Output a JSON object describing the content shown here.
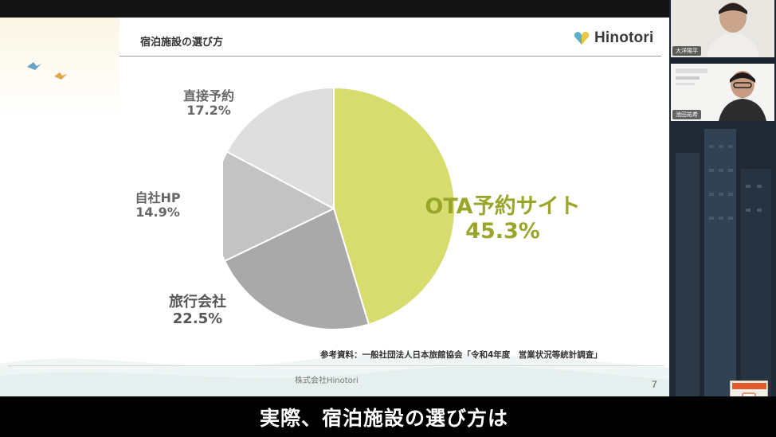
{
  "slide": {
    "title": "宿泊施設の選び方",
    "logo_text": "Hinotori",
    "source": "参考資料：一般社団法人日本旅館協会「令和4年度　営業状況等統計調査」",
    "company": "株式会社Hinotori",
    "page_number": "7"
  },
  "chart_data": {
    "type": "pie",
    "title": "",
    "slices": [
      {
        "label": "OTA予約サイト",
        "value": 45.3,
        "pct_label": "45.3%",
        "color": "#d6dc6e"
      },
      {
        "label": "旅行会社",
        "value": 22.5,
        "pct_label": "22.5%",
        "color": "#a9a9a9"
      },
      {
        "label": "自社HP",
        "value": 14.9,
        "pct_label": "14.9%",
        "color": "#c3c3c3"
      },
      {
        "label": "直接予約",
        "value": 17.2,
        "pct_label": "17.2%",
        "color": "#dedede"
      }
    ],
    "start_angle_deg": 0,
    "direction": "clockwise",
    "legend": "none"
  },
  "caption": "実際、宿泊施設の選び方は",
  "participants": [
    {
      "name": "大洋陽平"
    },
    {
      "name": "池田祐希"
    }
  ],
  "colors": {
    "accent_ota": "#9aa62a",
    "logo_mark": "#5bb0c6"
  }
}
